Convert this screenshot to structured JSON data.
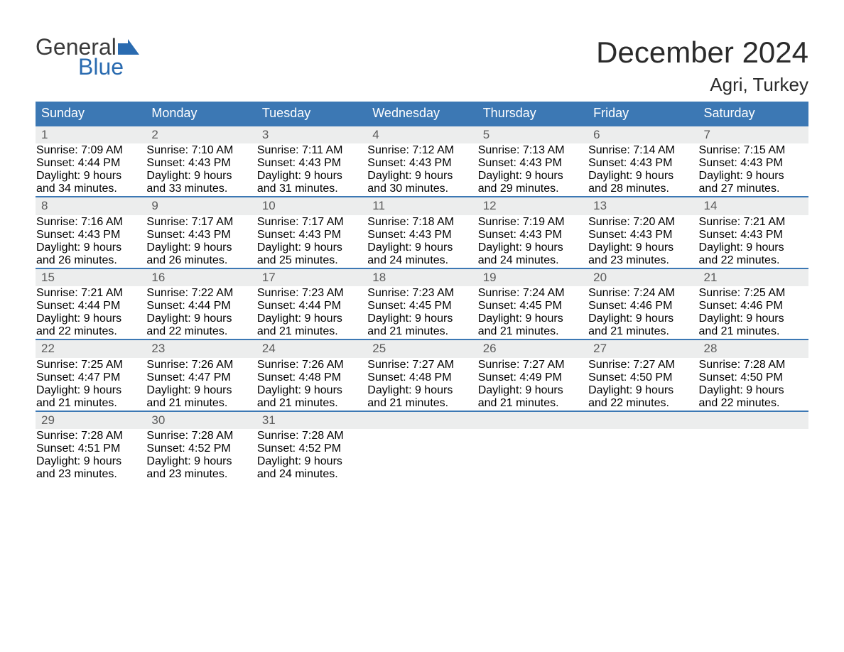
{
  "logo": {
    "word1": "General",
    "word2": "Blue",
    "flag_color": "#2a6bb0",
    "word1_color": "#3a3a3a",
    "word2_color": "#2a6bb0"
  },
  "title": "December 2024",
  "location": "Agri, Turkey",
  "header_bg": "#3c78b4",
  "header_fg": "#ffffff",
  "week_border": "#3c78b4",
  "daynum_bg": "#eceded",
  "daynum_fg": "#5b5b5b",
  "body_fg": "#333333",
  "page_bg": "#ffffff",
  "fonts": {
    "title_pt": 42,
    "location_pt": 26,
    "header_pt": 18,
    "daynum_pt": 17,
    "cell_pt": 15
  },
  "columns": [
    "Sunday",
    "Monday",
    "Tuesday",
    "Wednesday",
    "Thursday",
    "Friday",
    "Saturday"
  ],
  "weeks": [
    [
      {
        "n": "1",
        "sr": "7:09 AM",
        "ss": "4:44 PM",
        "dl1": "Daylight: 9 hours",
        "dl2": "and 34 minutes."
      },
      {
        "n": "2",
        "sr": "7:10 AM",
        "ss": "4:43 PM",
        "dl1": "Daylight: 9 hours",
        "dl2": "and 33 minutes."
      },
      {
        "n": "3",
        "sr": "7:11 AM",
        "ss": "4:43 PM",
        "dl1": "Daylight: 9 hours",
        "dl2": "and 31 minutes."
      },
      {
        "n": "4",
        "sr": "7:12 AM",
        "ss": "4:43 PM",
        "dl1": "Daylight: 9 hours",
        "dl2": "and 30 minutes."
      },
      {
        "n": "5",
        "sr": "7:13 AM",
        "ss": "4:43 PM",
        "dl1": "Daylight: 9 hours",
        "dl2": "and 29 minutes."
      },
      {
        "n": "6",
        "sr": "7:14 AM",
        "ss": "4:43 PM",
        "dl1": "Daylight: 9 hours",
        "dl2": "and 28 minutes."
      },
      {
        "n": "7",
        "sr": "7:15 AM",
        "ss": "4:43 PM",
        "dl1": "Daylight: 9 hours",
        "dl2": "and 27 minutes."
      }
    ],
    [
      {
        "n": "8",
        "sr": "7:16 AM",
        "ss": "4:43 PM",
        "dl1": "Daylight: 9 hours",
        "dl2": "and 26 minutes."
      },
      {
        "n": "9",
        "sr": "7:17 AM",
        "ss": "4:43 PM",
        "dl1": "Daylight: 9 hours",
        "dl2": "and 26 minutes."
      },
      {
        "n": "10",
        "sr": "7:17 AM",
        "ss": "4:43 PM",
        "dl1": "Daylight: 9 hours",
        "dl2": "and 25 minutes."
      },
      {
        "n": "11",
        "sr": "7:18 AM",
        "ss": "4:43 PM",
        "dl1": "Daylight: 9 hours",
        "dl2": "and 24 minutes."
      },
      {
        "n": "12",
        "sr": "7:19 AM",
        "ss": "4:43 PM",
        "dl1": "Daylight: 9 hours",
        "dl2": "and 24 minutes."
      },
      {
        "n": "13",
        "sr": "7:20 AM",
        "ss": "4:43 PM",
        "dl1": "Daylight: 9 hours",
        "dl2": "and 23 minutes."
      },
      {
        "n": "14",
        "sr": "7:21 AM",
        "ss": "4:43 PM",
        "dl1": "Daylight: 9 hours",
        "dl2": "and 22 minutes."
      }
    ],
    [
      {
        "n": "15",
        "sr": "7:21 AM",
        "ss": "4:44 PM",
        "dl1": "Daylight: 9 hours",
        "dl2": "and 22 minutes."
      },
      {
        "n": "16",
        "sr": "7:22 AM",
        "ss": "4:44 PM",
        "dl1": "Daylight: 9 hours",
        "dl2": "and 22 minutes."
      },
      {
        "n": "17",
        "sr": "7:23 AM",
        "ss": "4:44 PM",
        "dl1": "Daylight: 9 hours",
        "dl2": "and 21 minutes."
      },
      {
        "n": "18",
        "sr": "7:23 AM",
        "ss": "4:45 PM",
        "dl1": "Daylight: 9 hours",
        "dl2": "and 21 minutes."
      },
      {
        "n": "19",
        "sr": "7:24 AM",
        "ss": "4:45 PM",
        "dl1": "Daylight: 9 hours",
        "dl2": "and 21 minutes."
      },
      {
        "n": "20",
        "sr": "7:24 AM",
        "ss": "4:46 PM",
        "dl1": "Daylight: 9 hours",
        "dl2": "and 21 minutes."
      },
      {
        "n": "21",
        "sr": "7:25 AM",
        "ss": "4:46 PM",
        "dl1": "Daylight: 9 hours",
        "dl2": "and 21 minutes."
      }
    ],
    [
      {
        "n": "22",
        "sr": "7:25 AM",
        "ss": "4:47 PM",
        "dl1": "Daylight: 9 hours",
        "dl2": "and 21 minutes."
      },
      {
        "n": "23",
        "sr": "7:26 AM",
        "ss": "4:47 PM",
        "dl1": "Daylight: 9 hours",
        "dl2": "and 21 minutes."
      },
      {
        "n": "24",
        "sr": "7:26 AM",
        "ss": "4:48 PM",
        "dl1": "Daylight: 9 hours",
        "dl2": "and 21 minutes."
      },
      {
        "n": "25",
        "sr": "7:27 AM",
        "ss": "4:48 PM",
        "dl1": "Daylight: 9 hours",
        "dl2": "and 21 minutes."
      },
      {
        "n": "26",
        "sr": "7:27 AM",
        "ss": "4:49 PM",
        "dl1": "Daylight: 9 hours",
        "dl2": "and 21 minutes."
      },
      {
        "n": "27",
        "sr": "7:27 AM",
        "ss": "4:50 PM",
        "dl1": "Daylight: 9 hours",
        "dl2": "and 22 minutes."
      },
      {
        "n": "28",
        "sr": "7:28 AM",
        "ss": "4:50 PM",
        "dl1": "Daylight: 9 hours",
        "dl2": "and 22 minutes."
      }
    ],
    [
      {
        "n": "29",
        "sr": "7:28 AM",
        "ss": "4:51 PM",
        "dl1": "Daylight: 9 hours",
        "dl2": "and 23 minutes."
      },
      {
        "n": "30",
        "sr": "7:28 AM",
        "ss": "4:52 PM",
        "dl1": "Daylight: 9 hours",
        "dl2": "and 23 minutes."
      },
      {
        "n": "31",
        "sr": "7:28 AM",
        "ss": "4:52 PM",
        "dl1": "Daylight: 9 hours",
        "dl2": "and 24 minutes."
      },
      null,
      null,
      null,
      null
    ]
  ],
  "labels": {
    "sunrise": "Sunrise: ",
    "sunset": "Sunset: "
  }
}
